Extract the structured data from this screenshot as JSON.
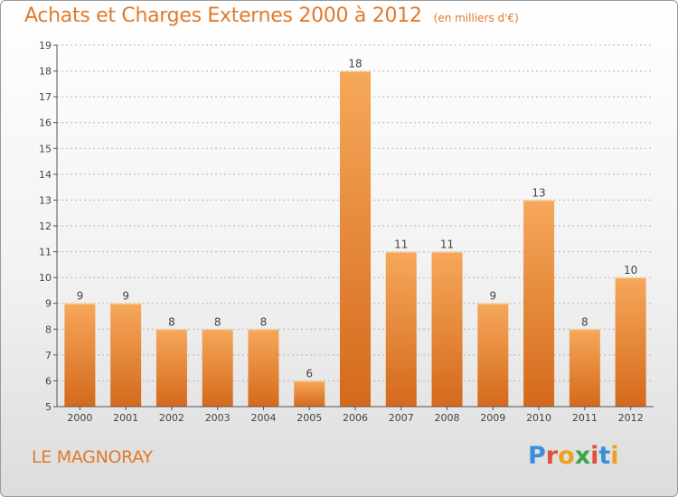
{
  "title": "Achats et Charges Externes 2000 à 2012",
  "subtitle": "(en milliers d'€)",
  "location": "LE MAGNORAY",
  "logo": {
    "text": "Proxiti",
    "letter_colors": [
      "#3a8fd8",
      "#e0513a",
      "#f0a020",
      "#3aa64a",
      "#e0513a",
      "#3a8fd8",
      "#f0a020"
    ]
  },
  "colors": {
    "bar_top": "#f6a85a",
    "bar_bottom": "#d4691c",
    "title": "#e07a2a",
    "axis": "#555555",
    "grid": "#b5b5b5"
  },
  "chart_data": {
    "type": "bar",
    "title": "Achats et Charges Externes 2000 à 2012",
    "subtitle": "(en milliers d'€)",
    "categories": [
      "2000",
      "2001",
      "2002",
      "2003",
      "2004",
      "2005",
      "2006",
      "2007",
      "2008",
      "2009",
      "2010",
      "2011",
      "2012"
    ],
    "values": [
      9,
      9,
      8,
      8,
      8,
      6,
      18,
      11,
      11,
      9,
      13,
      8,
      10
    ],
    "ylim": [
      5,
      19
    ],
    "yticks": [
      5,
      6,
      7,
      8,
      9,
      10,
      11,
      12,
      13,
      14,
      15,
      16,
      17,
      18,
      19
    ],
    "grid": true,
    "data_labels": true
  }
}
